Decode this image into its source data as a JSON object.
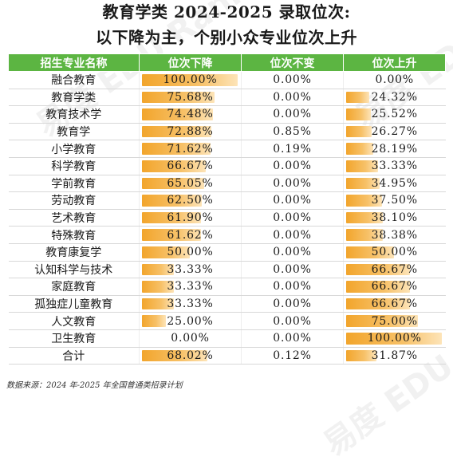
{
  "title_line1": "教育学类 2024-2025 录取位次:",
  "title_line2": "以下降为主，个别小众专业位次上升",
  "headers": [
    "招生专业名称",
    "位次下降",
    "位次不变",
    "位次上升"
  ],
  "source": "数据来源：2024 年-2025 年全国普通类招录计划",
  "watermark": "易度 EDU Rank",
  "colors": {
    "header_bg": "#5cb542",
    "bar": "#f2a52c"
  },
  "chart_data": {
    "type": "table",
    "title": "教育学类 2024-2025 录取位次: 以下降为主，个别小众专业位次上升",
    "columns": [
      "招生专业名称",
      "位次下降",
      "位次不变",
      "位次上升"
    ],
    "rows": [
      {
        "name": "融合教育",
        "down": 100.0,
        "same": 0.0,
        "up": 0.0
      },
      {
        "name": "教育学类",
        "down": 75.68,
        "same": 0.0,
        "up": 24.32
      },
      {
        "name": "教育技术学",
        "down": 74.48,
        "same": 0.0,
        "up": 25.52
      },
      {
        "name": "教育学",
        "down": 72.88,
        "same": 0.85,
        "up": 26.27
      },
      {
        "name": "小学教育",
        "down": 71.62,
        "same": 0.19,
        "up": 28.19
      },
      {
        "name": "科学教育",
        "down": 66.67,
        "same": 0.0,
        "up": 33.33
      },
      {
        "name": "学前教育",
        "down": 65.05,
        "same": 0.0,
        "up": 34.95
      },
      {
        "name": "劳动教育",
        "down": 62.5,
        "same": 0.0,
        "up": 37.5
      },
      {
        "name": "艺术教育",
        "down": 61.9,
        "same": 0.0,
        "up": 38.1
      },
      {
        "name": "特殊教育",
        "down": 61.62,
        "same": 0.0,
        "up": 38.38
      },
      {
        "name": "教育康复学",
        "down": 50.0,
        "same": 0.0,
        "up": 50.0
      },
      {
        "name": "认知科学与技术",
        "down": 33.33,
        "same": 0.0,
        "up": 66.67
      },
      {
        "name": "家庭教育",
        "down": 33.33,
        "same": 0.0,
        "up": 66.67
      },
      {
        "name": "孤独症儿童教育",
        "down": 33.33,
        "same": 0.0,
        "up": 66.67
      },
      {
        "name": "人文教育",
        "down": 25.0,
        "same": 0.0,
        "up": 75.0
      },
      {
        "name": "卫生教育",
        "down": 0.0,
        "same": 0.0,
        "up": 100.0
      },
      {
        "name": "合计",
        "down": 68.02,
        "same": 0.12,
        "up": 31.87
      }
    ]
  }
}
